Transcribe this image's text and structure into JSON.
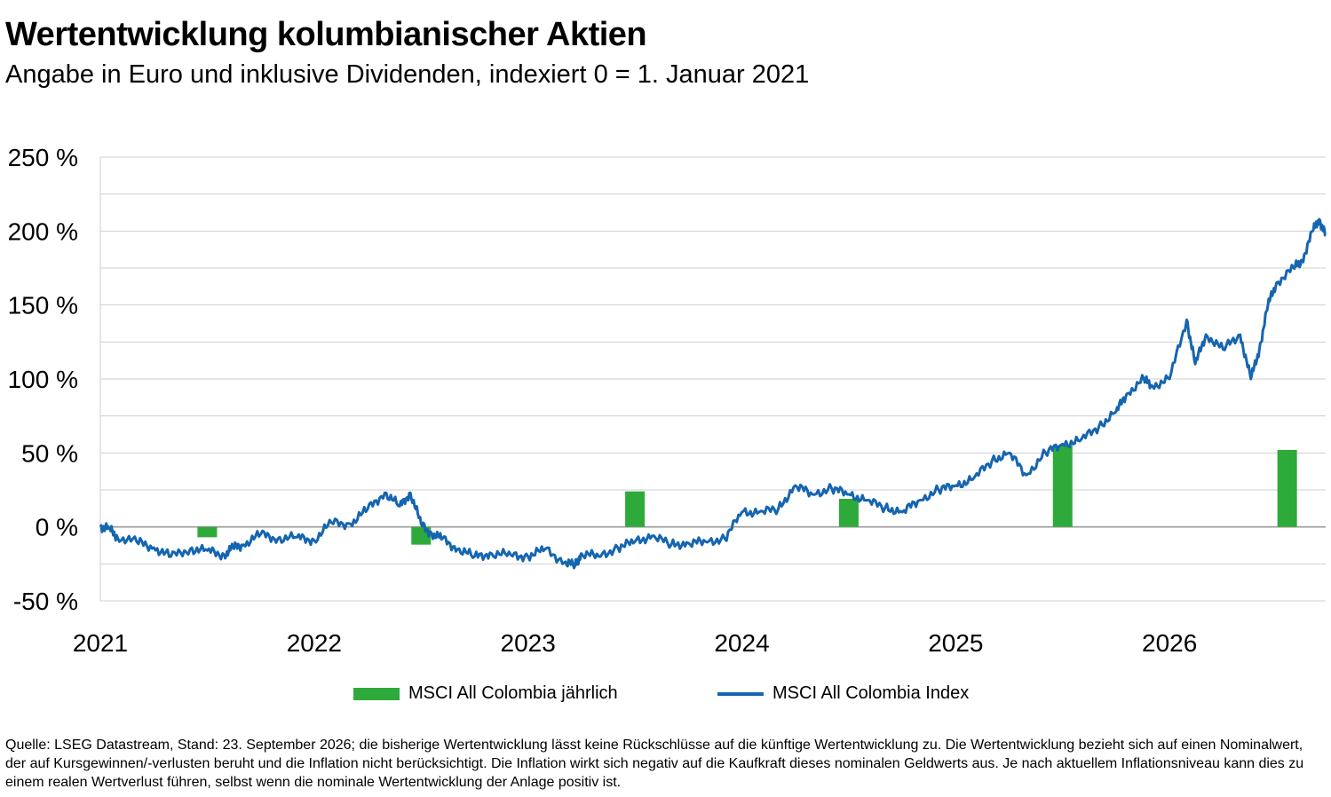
{
  "colors": {
    "bar": "#2eaa3a",
    "line": "#1565b0",
    "grid": "#cfcfcf",
    "axis": "#9a9a9a"
  },
  "chart_data": {
    "type": "line",
    "title": "Wertentwicklung kolumbianischer Aktien",
    "subtitle": "Angabe in Euro und inklusive Dividenden, indexiert 0 = 1. Januar 2021",
    "y_ticks": [
      "250 %",
      "200 %",
      "150 %",
      "100 %",
      "50 %",
      "0 %",
      "-50 %"
    ],
    "y_tick_values": [
      250,
      200,
      150,
      100,
      50,
      0,
      -50
    ],
    "ylim": [
      -50,
      250
    ],
    "x_ticks": [
      "2021",
      "2022",
      "2023",
      "2024",
      "2025",
      "2026"
    ],
    "x_tick_values": [
      2021,
      2022,
      2023,
      2024,
      2025,
      2026
    ],
    "xlim": [
      2021,
      2026.73
    ],
    "grid": true,
    "series": [
      {
        "name": "MSCI All Colombia jährlich",
        "type": "bar",
        "x": [
          2021.5,
          2022.5,
          2023.5,
          2024.5,
          2025.5,
          2026.55
        ],
        "values": [
          -7,
          -12,
          24,
          19,
          55,
          52
        ]
      },
      {
        "name": "MSCI All Colombia Index",
        "type": "line",
        "x": [
          2021.0,
          2021.04,
          2021.08,
          2021.17,
          2021.25,
          2021.33,
          2021.42,
          2021.5,
          2021.58,
          2021.62,
          2021.67,
          2021.75,
          2021.83,
          2021.92,
          2022.0,
          2022.08,
          2022.17,
          2022.25,
          2022.33,
          2022.4,
          2022.45,
          2022.5,
          2022.55,
          2022.6,
          2022.67,
          2022.75,
          2022.83,
          2022.92,
          2023.0,
          2023.08,
          2023.17,
          2023.22,
          2023.25,
          2023.33,
          2023.42,
          2023.5,
          2023.58,
          2023.67,
          2023.75,
          2023.83,
          2023.92,
          2024.0,
          2024.08,
          2024.17,
          2024.25,
          2024.33,
          2024.42,
          2024.5,
          2024.58,
          2024.67,
          2024.75,
          2024.83,
          2024.92,
          2025.0,
          2025.08,
          2025.17,
          2025.25,
          2025.33,
          2025.42,
          2025.5,
          2025.58,
          2025.67,
          2025.75,
          2025.8,
          2025.88,
          2025.92,
          2026.0,
          2026.08,
          2026.12,
          2026.17,
          2026.25,
          2026.33,
          2026.38,
          2026.42,
          2026.46,
          2026.5,
          2026.58,
          2026.62,
          2026.67,
          2026.7,
          2026.73
        ],
        "values": [
          0,
          -1,
          -7,
          -10,
          -14,
          -20,
          -15,
          -16,
          -19,
          -14,
          -12,
          -5,
          -8,
          -7,
          -9,
          3,
          2,
          12,
          23,
          14,
          23,
          2,
          -5,
          -8,
          -15,
          -20,
          -18,
          -19,
          -20,
          -15,
          -24,
          -26,
          -18,
          -20,
          -14,
          -10,
          -6,
          -12,
          -11,
          -10,
          -8,
          10,
          10,
          12,
          28,
          22,
          26,
          22,
          18,
          13,
          10,
          18,
          25,
          28,
          32,
          45,
          50,
          35,
          50,
          56,
          58,
          68,
          78,
          90,
          100,
          95,
          100,
          140,
          110,
          130,
          120,
          130,
          100,
          120,
          150,
          165,
          175,
          180,
          200,
          208,
          197
        ]
      }
    ]
  },
  "legend": {
    "bar_label": "MSCI All Colombia jährlich",
    "line_label": "MSCI All Colombia Index"
  },
  "footnote": "Quelle: LSEG Datastream, Stand: 23. September 2026; die bisherige Wertentwicklung lässt keine Rückschlüsse auf die künftige Wertentwicklung zu. Die Wertentwicklung bezieht sich auf einen Nominalwert, der auf Kursgewinnen/-verlusten beruht und die Inflation nicht berücksichtigt. Die Inflation wirkt sich negativ auf die Kaufkraft dieses nominalen Geldwerts aus. Je nach aktuellem Inflationsniveau kann dies zu einem realen Wertverlust führen, selbst wenn die nominale Wertentwicklung der Anlage positiv ist."
}
